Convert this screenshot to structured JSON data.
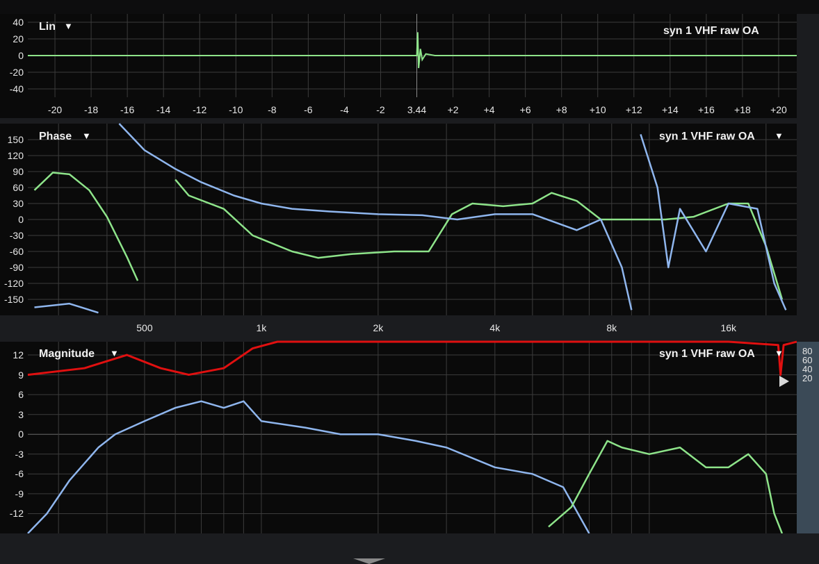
{
  "panels": {
    "lin": {
      "title": "Lin",
      "trace_label": "syn 1 VHF raw OA",
      "y_ticks": [
        "40",
        "20",
        "0",
        "-20",
        "-40"
      ],
      "x_ticks": [
        "-20",
        "-18",
        "-16",
        "-14",
        "-12",
        "-10",
        "-8",
        "-6",
        "-4",
        "-2",
        "3.44",
        "+2",
        "+4",
        "+6",
        "+8",
        "+10",
        "+12",
        "+14",
        "+16",
        "+18",
        "+20"
      ]
    },
    "phase": {
      "title": "Phase",
      "trace_label": "syn 1 VHF raw OA",
      "y_ticks": [
        "150",
        "120",
        "90",
        "60",
        "30",
        "0",
        "-30",
        "-60",
        "-90",
        "-120",
        "-150"
      ],
      "x_ticks": [
        "500",
        "1k",
        "2k",
        "4k",
        "8k",
        "16k"
      ]
    },
    "magnitude": {
      "title": "Magnitude",
      "trace_label": "syn 1 VHF raw OA",
      "y_ticks": [
        "12",
        "9",
        "6",
        "3",
        "0",
        "-3",
        "-6",
        "-9",
        "-12"
      ],
      "x_ticks": [
        "500",
        "1k",
        "2k",
        "4k",
        "8k",
        "16k"
      ],
      "coherence_ticks": [
        "80",
        "60",
        "40",
        "20"
      ]
    }
  },
  "colors": {
    "background": "#0a0a0a",
    "grid": "#3c3c3c",
    "green_trace": "#8ee48a",
    "blue_trace": "#8fb6ee",
    "red_trace": "#e01010"
  },
  "chart_data": [
    {
      "type": "line",
      "title": "Lin",
      "legend": "syn 1 VHF raw OA",
      "ylim": [
        -50,
        50
      ],
      "xlim": [
        -21.5,
        21
      ],
      "series": [
        {
          "values": [
            [
              -21.5,
              0
            ],
            [
              0,
              0
            ],
            [
              0.05,
              28
            ],
            [
              0.1,
              -15
            ],
            [
              0.2,
              8
            ],
            [
              0.3,
              -5
            ],
            [
              0.5,
              2
            ],
            [
              1,
              0
            ],
            [
              21,
              0
            ]
          ]
        }
      ]
    },
    {
      "type": "line",
      "title": "Phase",
      "legend": "syn 1 VHF raw OA",
      "x_scale": "log",
      "xlim": [
        250,
        24000
      ],
      "ylim": [
        -180,
        180
      ],
      "series": [
        {
          "values": [
            [
              260,
              55
            ],
            [
              290,
              88
            ],
            [
              320,
              85
            ],
            [
              360,
              55
            ],
            [
              400,
              5
            ],
            [
              450,
              -70
            ],
            [
              480,
              -115
            ],
            [
              600,
              75
            ],
            [
              650,
              45
            ],
            [
              800,
              20
            ],
            [
              950,
              -30
            ],
            [
              1200,
              -60
            ],
            [
              1400,
              -72
            ],
            [
              1700,
              -65
            ],
            [
              2200,
              -60
            ],
            [
              2700,
              -60
            ],
            [
              3100,
              10
            ],
            [
              3500,
              30
            ],
            [
              4200,
              25
            ],
            [
              5000,
              30
            ],
            [
              5600,
              50
            ],
            [
              6500,
              35
            ],
            [
              7500,
              0
            ],
            [
              9000,
              0
            ],
            [
              11000,
              0
            ],
            [
              13000,
              5
            ],
            [
              16000,
              30
            ],
            [
              18000,
              30
            ],
            [
              20000,
              -50
            ],
            [
              22000,
              -150
            ],
            [
              23500,
              180
            ]
          ]
        },
        {
          "values": [
            [
              260,
              -165
            ],
            [
              320,
              -158
            ],
            [
              380,
              -175
            ],
            [
              430,
              180
            ],
            [
              500,
              130
            ],
            [
              600,
              95
            ],
            [
              700,
              70
            ],
            [
              850,
              45
            ],
            [
              1000,
              30
            ],
            [
              1200,
              20
            ],
            [
              1500,
              15
            ],
            [
              2000,
              10
            ],
            [
              2600,
              8
            ],
            [
              3200,
              0
            ],
            [
              4000,
              10
            ],
            [
              5000,
              10
            ],
            [
              6500,
              -20
            ],
            [
              7500,
              0
            ],
            [
              8500,
              -90
            ],
            [
              9000,
              -170
            ],
            [
              9500,
              160
            ],
            [
              10500,
              60
            ],
            [
              11200,
              -90
            ],
            [
              12000,
              20
            ],
            [
              14000,
              -60
            ],
            [
              16000,
              30
            ],
            [
              19000,
              20
            ],
            [
              21000,
              -120
            ],
            [
              22500,
              -170
            ],
            [
              23200,
              150
            ],
            [
              24000,
              -40
            ]
          ]
        }
      ]
    },
    {
      "type": "line",
      "title": "Magnitude",
      "legend": "syn 1 VHF raw OA",
      "x_scale": "log",
      "xlim": [
        250,
        24000
      ],
      "ylim": [
        -15,
        14
      ],
      "y2_ticks": [
        80,
        60,
        40,
        20
      ],
      "series": [
        {
          "values": [
            [
              250,
              -15
            ],
            [
              280,
              -12
            ],
            [
              320,
              -7
            ],
            [
              380,
              -2
            ],
            [
              420,
              0
            ],
            [
              500,
              2
            ],
            [
              600,
              4
            ],
            [
              700,
              5
            ],
            [
              800,
              4
            ],
            [
              900,
              5
            ],
            [
              1000,
              2
            ],
            [
              1300,
              1
            ],
            [
              1600,
              0
            ],
            [
              2000,
              0
            ],
            [
              2500,
              -1
            ],
            [
              3000,
              -2
            ],
            [
              4000,
              -5
            ],
            [
              5000,
              -6
            ],
            [
              6000,
              -8
            ],
            [
              7000,
              -15
            ]
          ]
        },
        {
          "values": [
            [
              5500,
              -14
            ],
            [
              6300,
              -11
            ],
            [
              7000,
              -6
            ],
            [
              7800,
              -1
            ],
            [
              8500,
              -2
            ],
            [
              10000,
              -3
            ],
            [
              12000,
              -2
            ],
            [
              14000,
              -5
            ],
            [
              16000,
              -5
            ],
            [
              18000,
              -3
            ],
            [
              20000,
              -6
            ],
            [
              21000,
              -12
            ],
            [
              22000,
              -15
            ]
          ]
        },
        {
          "values": [
            [
              250,
              9
            ],
            [
              350,
              10
            ],
            [
              450,
              12
            ],
            [
              550,
              10
            ],
            [
              650,
              9
            ],
            [
              800,
              10
            ],
            [
              950,
              13
            ],
            [
              1100,
              14
            ],
            [
              2000,
              14
            ],
            [
              4000,
              14
            ],
            [
              8000,
              14
            ],
            [
              16000,
              14
            ],
            [
              21500,
              13.5
            ],
            [
              21800,
              9
            ],
            [
              22200,
              13.5
            ],
            [
              24000,
              14
            ]
          ]
        }
      ]
    }
  ]
}
